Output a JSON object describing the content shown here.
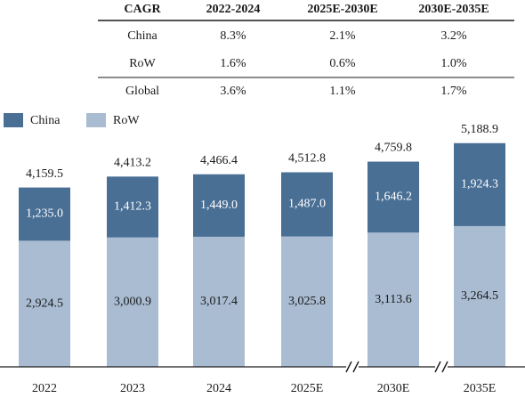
{
  "cagr_table": {
    "headers": [
      "CAGR",
      "2022-2024",
      "2025E-2030E",
      "2030E-2035E"
    ],
    "rows": [
      {
        "label": "China",
        "values": [
          "8.3%",
          "2.1%",
          "3.2%"
        ]
      },
      {
        "label": "RoW",
        "values": [
          "1.6%",
          "0.6%",
          "1.0%"
        ]
      },
      {
        "label": "Global",
        "values": [
          "3.6%",
          "1.1%",
          "1.7%"
        ]
      }
    ]
  },
  "colors": {
    "china": "#4a6f95",
    "row": "#a9bcd2",
    "line": "#1a1a1a",
    "china_text": "#ffffff",
    "row_text": "#1a1a1a"
  },
  "chart_data": {
    "type": "bar",
    "stacked": true,
    "categories": [
      "2022",
      "2023",
      "2024",
      "2025E",
      "2030E",
      "2035E"
    ],
    "series": [
      {
        "name": "China",
        "values": [
          1235.0,
          1412.3,
          1449.0,
          1487.0,
          1646.2,
          1924.3
        ],
        "labels": [
          "1,235.0",
          "1,412.3",
          "1,449.0",
          "1,487.0",
          "1,646.2",
          "1,924.3"
        ]
      },
      {
        "name": "RoW",
        "values": [
          2924.5,
          3000.9,
          3017.4,
          3025.8,
          3113.6,
          3264.5
        ],
        "labels": [
          "2,924.5",
          "3,000.9",
          "3,017.4",
          "3,025.8",
          "3,113.6",
          "3,264.5"
        ]
      }
    ],
    "totals": [
      4159.5,
      4413.2,
      4466.4,
      4512.8,
      4759.8,
      5188.9
    ],
    "total_labels": [
      "4,159.5",
      "4,413.2",
      "4,466.4",
      "4,512.8",
      "4,759.8",
      "5,188.9"
    ],
    "axis_breaks_before": [
      "2030E",
      "2035E"
    ],
    "legend_position": "top-left",
    "grid": false
  }
}
